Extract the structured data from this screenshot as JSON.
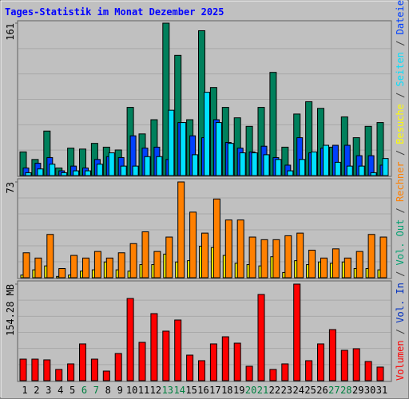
{
  "chart_data": [
    {
      "type": "bar",
      "title": "Tages-Statistik im Monat Dezember 2025",
      "ylim": [
        0,
        161
      ],
      "yticks": [
        161
      ],
      "series": [
        {
          "name": "Anfragen",
          "color": "#00805c",
          "values": [
            25,
            17,
            47,
            8,
            29,
            28,
            34,
            30,
            27,
            72,
            44,
            59,
            161,
            127,
            59,
            153,
            93,
            72,
            61,
            52,
            72,
            109,
            30,
            65,
            78,
            71,
            30,
            62,
            40,
            52,
            56
          ]
        },
        {
          "name": "Dateien",
          "color": "#0040ff",
          "values": [
            8,
            13,
            19,
            5,
            10,
            8,
            17,
            20,
            19,
            42,
            29,
            30,
            17,
            56,
            42,
            40,
            59,
            35,
            29,
            25,
            31,
            19,
            11,
            40,
            24,
            29,
            32,
            32,
            21,
            21,
            11
          ]
        },
        {
          "name": "Seiten",
          "color": "#00e0ff",
          "values": [
            3,
            7,
            12,
            3,
            5,
            5,
            12,
            24,
            10,
            10,
            20,
            20,
            69,
            56,
            22,
            88,
            56,
            34,
            24,
            24,
            22,
            17,
            5,
            17,
            25,
            32,
            14,
            10,
            10,
            3,
            18
          ]
        }
      ]
    },
    {
      "type": "bar",
      "ylim": [
        0,
        73
      ],
      "yticks": [
        73
      ],
      "series": [
        {
          "name": "Besuche",
          "color": "#ffff00",
          "values": [
            2,
            6,
            9,
            1,
            2,
            5,
            6,
            12,
            6,
            5,
            10,
            10,
            18,
            12,
            13,
            24,
            23,
            17,
            11,
            10,
            9,
            16,
            4,
            13,
            10,
            12,
            11,
            12,
            7,
            7,
            6
          ]
        },
        {
          "name": "Rechner",
          "color": "#ff8000",
          "values": [
            19,
            15,
            33,
            7,
            17,
            15,
            20,
            15,
            19,
            26,
            35,
            20,
            31,
            73,
            50,
            34,
            60,
            44,
            44,
            31,
            29,
            29,
            32,
            34,
            21,
            15,
            22,
            15,
            20,
            33,
            31
          ]
        }
      ]
    },
    {
      "type": "bar",
      "ylim": [
        0,
        154.28
      ],
      "yticks": [
        {
          "value": 154.28,
          "label": "154.28 MB"
        }
      ],
      "series": [
        {
          "name": "Volumen",
          "color": "#ff0000",
          "values": [
            34.4,
            34.4,
            33.2,
            17.9,
            26.8,
            58.7,
            34.4,
            15.3,
            43.4,
            131.3,
            61.2,
            107.1,
            79.1,
            96.9,
            40.8,
            31.9,
            58.7,
            70.1,
            59.9,
            23.0,
            137.7,
            17.9,
            26.8,
            154.28,
            31.9,
            58.7,
            81.6,
            48.5,
            51.0,
            30.6,
            21.7
          ]
        }
      ],
      "legend": [
        {
          "name": "Vol. In",
          "color": "#0030c0"
        },
        {
          "name": "Vol. Out",
          "color": "#00a070"
        }
      ],
      "categories": [
        "1",
        "2",
        "3",
        "4",
        "5",
        "6",
        "7",
        "8",
        "9",
        "10",
        "11",
        "12",
        "13",
        "14",
        "15",
        "16",
        "17",
        "18",
        "19",
        "20",
        "21",
        "22",
        "23",
        "24",
        "25",
        "26",
        "27",
        "28",
        "29",
        "30",
        "31"
      ],
      "category_colors": [
        "#000",
        "#000",
        "#000",
        "#000",
        "#000",
        "#008040",
        "#008040",
        "#000",
        "#000",
        "#000",
        "#000",
        "#000",
        "#008040",
        "#008040",
        "#000",
        "#000",
        "#000",
        "#000",
        "#000",
        "#008040",
        "#008040",
        "#000",
        "#000",
        "#000",
        "#000",
        "#000",
        "#008040",
        "#008040",
        "#000",
        "#000",
        "#000"
      ]
    }
  ]
}
